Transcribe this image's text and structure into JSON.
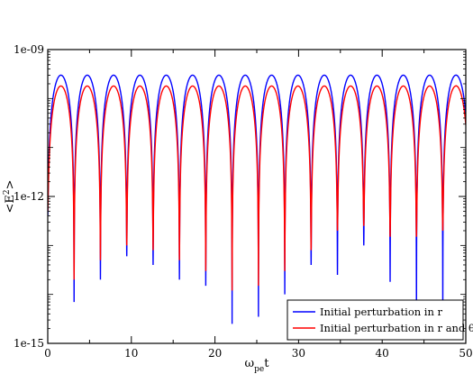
{
  "chart_data": {
    "type": "line",
    "xlabel": {
      "main": "ω",
      "sub": "pe",
      "tail": "t"
    },
    "ylabel": {
      "main": "<E",
      "sup": "2",
      "tail": ">"
    },
    "xlim": [
      0,
      50
    ],
    "ylim_log10": [
      -15,
      -9
    ],
    "y_scale": "log",
    "x_ticks": [
      0,
      10,
      20,
      30,
      40,
      50
    ],
    "x_tick_labels": [
      "0",
      "10",
      "20",
      "30",
      "40",
      "50"
    ],
    "y_ticks_log10": [
      -15,
      -12,
      -9
    ],
    "y_tick_labels": [
      "1e-15",
      "1e-12",
      "1e-09"
    ],
    "grid": false,
    "legend_position": "bottom-right",
    "series": [
      {
        "name": "Initial perturbation in r",
        "color": "#0000ff",
        "period": 3.15,
        "peak": 3e-10,
        "phase": 0.0,
        "minima": [
          [
            0.0,
            4e-13
          ],
          [
            3.15,
            7e-15
          ],
          [
            6.3,
            2e-14
          ],
          [
            9.45,
            6e-14
          ],
          [
            12.6,
            4e-14
          ],
          [
            15.75,
            2e-14
          ],
          [
            18.9,
            1.5e-14
          ],
          [
            22.05,
            2.5e-15
          ],
          [
            25.2,
            3.5e-15
          ],
          [
            28.35,
            1e-14
          ],
          [
            31.5,
            4e-14
          ],
          [
            34.65,
            2.5e-14
          ],
          [
            37.8,
            1e-13
          ],
          [
            40.95,
            1.8e-14
          ],
          [
            44.1,
            3e-15
          ],
          [
            47.25,
            2.5e-15
          ],
          [
            50.4,
            1e-12
          ]
        ]
      },
      {
        "name": "Initial perturbation in r and θ",
        "color": "#ff0000",
        "period": 3.15,
        "peak": 1.8e-10,
        "phase": 0.0,
        "minima": [
          [
            0.0,
            5e-13
          ],
          [
            3.15,
            2e-14
          ],
          [
            6.3,
            5e-14
          ],
          [
            9.45,
            1e-13
          ],
          [
            12.6,
            8e-14
          ],
          [
            15.75,
            5e-14
          ],
          [
            18.9,
            3e-14
          ],
          [
            22.05,
            1.2e-14
          ],
          [
            25.2,
            1.5e-14
          ],
          [
            28.35,
            3e-14
          ],
          [
            31.5,
            8e-14
          ],
          [
            34.65,
            2e-13
          ],
          [
            37.8,
            2.5e-13
          ],
          [
            40.95,
            1.5e-13
          ],
          [
            44.1,
            1.5e-13
          ],
          [
            47.25,
            2e-13
          ],
          [
            50.4,
            2e-12
          ]
        ]
      }
    ]
  }
}
